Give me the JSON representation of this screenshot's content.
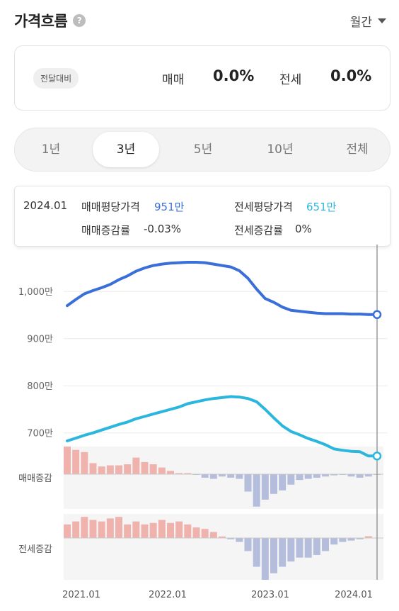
{
  "header": {
    "title": "가격흐름",
    "help_icon": "question-icon",
    "period": "월간",
    "period_icon": "caret-down-icon"
  },
  "comparison": {
    "badge": "전달대비",
    "sale_label": "매매",
    "sale_value": "0.0%",
    "jeonse_label": "전세",
    "jeonse_value": "0.0%"
  },
  "range_tabs": {
    "options": [
      "1년",
      "3년",
      "5년",
      "10년",
      "전체"
    ],
    "selected": "3년"
  },
  "tooltip": {
    "date": "2024.01",
    "sale_price_label": "매매평당가격",
    "sale_price_value": "951만",
    "jeonse_price_label": "전세평당가격",
    "jeonse_price_value": "651만",
    "sale_change_label": "매매증감률",
    "sale_change_value": "-0.03%",
    "jeonse_change_label": "전세증감률",
    "jeonse_change_value": "0%"
  },
  "colors": {
    "sale": "#3a6ed9",
    "jeonse": "#2bb6de",
    "positive_bar": "#efb2ad",
    "negative_bar": "#b4bddc"
  },
  "chart_data": {
    "type": "line",
    "x": [
      "2021.01",
      "2021.02",
      "2021.03",
      "2021.04",
      "2021.05",
      "2021.06",
      "2021.07",
      "2021.08",
      "2021.09",
      "2021.10",
      "2021.11",
      "2021.12",
      "2022.01",
      "2022.02",
      "2022.03",
      "2022.04",
      "2022.05",
      "2022.06",
      "2022.07",
      "2022.08",
      "2022.09",
      "2022.10",
      "2022.11",
      "2022.12",
      "2023.01",
      "2023.02",
      "2023.03",
      "2023.04",
      "2023.05",
      "2023.06",
      "2023.07",
      "2023.08",
      "2023.09",
      "2023.10",
      "2023.11",
      "2023.12",
      "2024.01"
    ],
    "x_ticks": [
      "2021.01",
      "2022.01",
      "2023.01",
      "2024.01"
    ],
    "y_ticks": [
      "1,000만",
      "900만",
      "800만",
      "700만"
    ],
    "y_tick_values": [
      1000,
      900,
      800,
      700
    ],
    "ylim": [
      656,
      1077
    ],
    "series": [
      {
        "name": "매매평당가격",
        "values": [
          970,
          983,
          995,
          1002,
          1008,
          1015,
          1025,
          1033,
          1043,
          1050,
          1055,
          1058,
          1060,
          1061,
          1062,
          1062,
          1061,
          1058,
          1055,
          1052,
          1044,
          1028,
          1005,
          985,
          977,
          967,
          960,
          958,
          956,
          954,
          953,
          953,
          953,
          952,
          952,
          951,
          951
        ]
      },
      {
        "name": "전세평당가격",
        "values": [
          683,
          689,
          695,
          700,
          706,
          712,
          718,
          723,
          730,
          735,
          740,
          745,
          750,
          755,
          762,
          766,
          770,
          773,
          775,
          777,
          776,
          773,
          766,
          750,
          732,
          715,
          703,
          696,
          688,
          682,
          675,
          666,
          663,
          661,
          660,
          651,
          651
        ]
      }
    ],
    "sub_panels": [
      {
        "label": "매매증감",
        "min": -30,
        "max": 25,
        "values": [
          25,
          22,
          20,
          10,
          7,
          8,
          8,
          9,
          15,
          11,
          9,
          6,
          3,
          1,
          1,
          -0.5,
          -3,
          -4,
          -2,
          -3,
          -4,
          -15,
          -28,
          -22,
          -17,
          -14,
          -9,
          -5,
          -4,
          -3,
          -2,
          -1,
          -0.5,
          -2,
          -3,
          -2,
          -0.03
        ]
      },
      {
        "label": "전세증감",
        "min": -32,
        "max": 16,
        "values": [
          9,
          11,
          14,
          12,
          11,
          13,
          14,
          9,
          11,
          9,
          10,
          12,
          10,
          11,
          9,
          7,
          6,
          4,
          1,
          -1,
          -3,
          -10,
          -22,
          -32,
          -27,
          -22,
          -18,
          -15,
          -15,
          -13,
          -10,
          -5,
          -3,
          -2,
          -1,
          1.2,
          0
        ]
      }
    ],
    "highlight": "2024.01"
  }
}
